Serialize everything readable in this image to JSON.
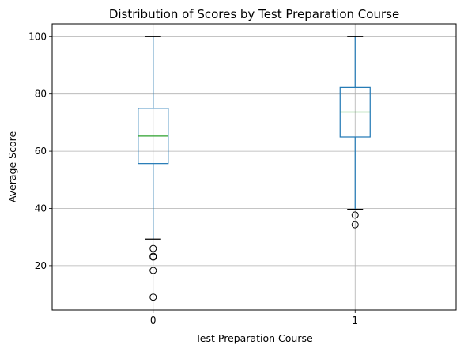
{
  "chart_data": {
    "type": "box",
    "title": "Distribution of Scores by Test Preparation Course",
    "xlabel": "Test Preparation Course",
    "ylabel": "Average Score",
    "categories": [
      "0",
      "1"
    ],
    "ylim": [
      4.5,
      104.5
    ],
    "yticks": [
      20,
      40,
      60,
      80,
      100
    ],
    "grid": true,
    "colors": {
      "box": "#1f77b4",
      "median": "#2ca02c",
      "whisker_cap": "#000000",
      "outlier": "#000000",
      "grid": "#b0b0b0"
    },
    "series": [
      {
        "category": "0",
        "whisker_low": 29.3,
        "q1": 55.7,
        "median": 65.3,
        "q3": 75.0,
        "whisker_high": 100,
        "outliers": [
          26.0,
          23.3,
          23.0,
          18.3,
          9.0
        ]
      },
      {
        "category": "1",
        "whisker_low": 39.7,
        "q1": 65.0,
        "median": 73.7,
        "q3": 82.3,
        "whisker_high": 100,
        "outliers": [
          37.7,
          34.3
        ]
      }
    ]
  }
}
